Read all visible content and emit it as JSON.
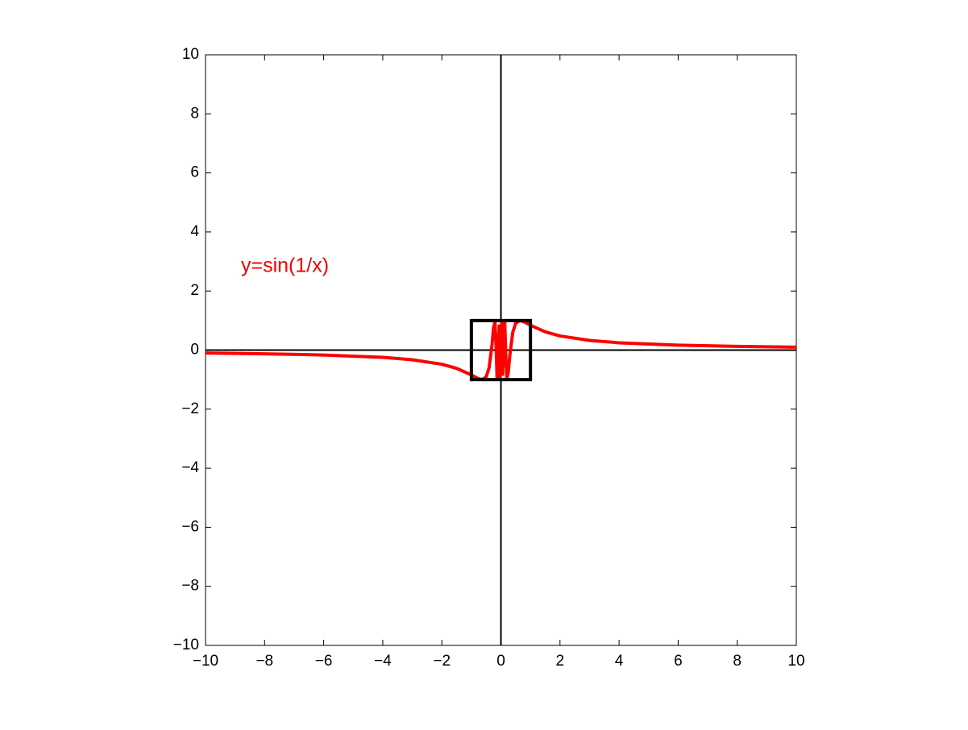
{
  "chart_data": {
    "type": "line",
    "annotation": "y=sin(1/x)",
    "x": [
      -10,
      -8,
      -6,
      -4,
      -3,
      -2,
      -1.5,
      -1,
      -0.8,
      -0.64,
      -0.5,
      -0.4,
      -0.3,
      -0.25,
      -0.2,
      -0.16,
      -0.13,
      -0.1,
      -0.08,
      -0.07,
      -0.06,
      -0.05,
      -0.04,
      -0.03,
      0.03,
      0.04,
      0.05,
      0.06,
      0.07,
      0.08,
      0.1,
      0.13,
      0.16,
      0.2,
      0.25,
      0.3,
      0.4,
      0.5,
      0.64,
      0.8,
      1,
      1.5,
      2,
      3,
      4,
      6,
      8,
      10
    ],
    "series": [
      {
        "color": "#ff0000",
        "values": [
          -0.1,
          -0.125,
          -0.166,
          -0.247,
          -0.327,
          -0.479,
          -0.618,
          -0.841,
          -0.949,
          -1.0,
          -0.909,
          -0.598,
          0.19,
          0.757,
          0.959,
          0.033,
          -0.987,
          0.544,
          0.066,
          -0.988,
          0.82,
          -0.913,
          0.132,
          -0.94,
          0.94,
          -0.132,
          0.913,
          -0.82,
          0.988,
          -0.066,
          -0.544,
          0.987,
          -0.033,
          -0.959,
          -0.757,
          -0.19,
          0.598,
          0.909,
          1.0,
          0.949,
          0.841,
          0.618,
          0.479,
          0.327,
          0.247,
          0.166,
          0.125,
          0.1
        ]
      }
    ],
    "box": {
      "x": [
        -1,
        1
      ],
      "y": [
        -1,
        1
      ],
      "color": "#000000"
    },
    "xlim": [
      -10,
      10
    ],
    "ylim": [
      -10,
      10
    ],
    "xticks": [
      {
        "value": -10,
        "label": "−10"
      },
      {
        "value": -8,
        "label": "−8"
      },
      {
        "value": -6,
        "label": "−6"
      },
      {
        "value": -4,
        "label": "−4"
      },
      {
        "value": -2,
        "label": "−2"
      },
      0,
      2,
      4,
      6,
      8,
      10
    ],
    "yticks": [
      {
        "value": -10,
        "label": "−10"
      },
      {
        "value": -8,
        "label": "−8"
      },
      {
        "value": -6,
        "label": "−6"
      },
      {
        "value": -4,
        "label": "−4"
      },
      {
        "value": -2,
        "label": "−2"
      },
      0,
      2,
      4,
      6,
      8,
      10
    ],
    "grid": false
  }
}
